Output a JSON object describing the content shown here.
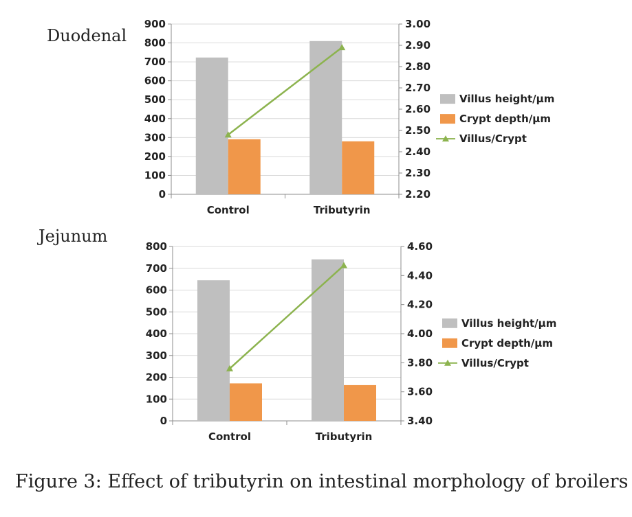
{
  "figure_caption": "Figure 3: Effect of tributyrin on intestinal morphology of broilers",
  "colors": {
    "villus_height": "#bfbfbf",
    "crypt_depth": "#f0974a",
    "ratio_line": "#8cb34e",
    "axis": "#8c8c8c",
    "text": "#222222"
  },
  "chart_data": [
    {
      "type": "bar",
      "panel_label": "Duodenal",
      "categories": [
        "Control",
        "Tributyrin"
      ],
      "series": [
        {
          "name": "Villus height/µm",
          "kind": "bar",
          "axis": "left",
          "values": [
            723,
            810
          ]
        },
        {
          "name": "Crypt depth/µm",
          "kind": "bar",
          "axis": "left",
          "values": [
            291,
            280
          ]
        },
        {
          "name": "Villus/Crypt",
          "kind": "line",
          "axis": "right",
          "values": [
            2.48,
            2.89
          ]
        }
      ],
      "ylim": [
        0,
        900
      ],
      "yticks": [
        "0",
        "100",
        "200",
        "300",
        "400",
        "500",
        "600",
        "700",
        "800",
        "900"
      ],
      "y2lim": [
        2.2,
        3.0
      ],
      "y2ticks": [
        "2.20",
        "2.30",
        "2.40",
        "2.50",
        "2.60",
        "2.70",
        "2.80",
        "2.90",
        "3.00"
      ],
      "legend_position": "right",
      "grid": true
    },
    {
      "type": "bar",
      "panel_label": "Jejunum",
      "categories": [
        "Control",
        "Tributyrin"
      ],
      "series": [
        {
          "name": "Villus height/µm",
          "kind": "bar",
          "axis": "left",
          "values": [
            645,
            741
          ]
        },
        {
          "name": "Crypt depth/µm",
          "kind": "bar",
          "axis": "left",
          "values": [
            172,
            164
          ]
        },
        {
          "name": "Villus/Crypt",
          "kind": "line",
          "axis": "right",
          "values": [
            3.76,
            4.47
          ]
        }
      ],
      "ylim": [
        0,
        800
      ],
      "yticks": [
        "0",
        "100",
        "200",
        "300",
        "400",
        "500",
        "600",
        "700",
        "800"
      ],
      "y2lim": [
        3.4,
        4.6
      ],
      "y2ticks": [
        "3.40",
        "3.60",
        "3.80",
        "4.00",
        "4.20",
        "4.40",
        "4.60"
      ],
      "legend_position": "right",
      "grid": true
    }
  ]
}
